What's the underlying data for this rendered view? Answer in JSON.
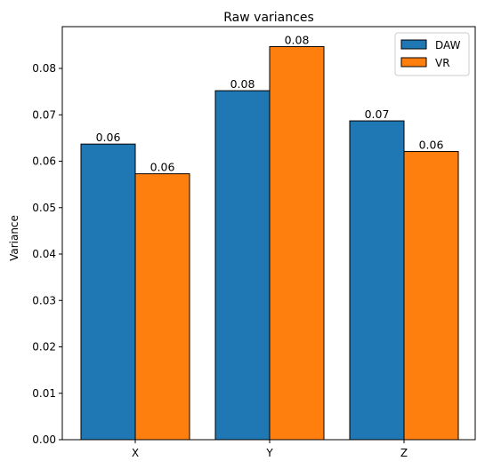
{
  "chart_data": {
    "type": "bar",
    "title": "Raw variances",
    "xlabel": "",
    "ylabel": "Variance",
    "categories": [
      "X",
      "Y",
      "Z"
    ],
    "series": [
      {
        "name": "DAW",
        "values": [
          0.0637,
          0.0752,
          0.0687
        ],
        "labels": [
          "0.06",
          "0.08",
          "0.07"
        ],
        "color": "#1f77b4"
      },
      {
        "name": "VR",
        "values": [
          0.0573,
          0.0847,
          0.0621
        ],
        "labels": [
          "0.06",
          "0.08",
          "0.06"
        ],
        "color": "#ff7f0e"
      }
    ],
    "ylim": [
      0,
      0.089
    ],
    "yticks": [
      0.0,
      0.01,
      0.02,
      0.03,
      0.04,
      0.05,
      0.06,
      0.07,
      0.08
    ],
    "ytick_labels": [
      "0.00",
      "0.01",
      "0.02",
      "0.03",
      "0.04",
      "0.05",
      "0.06",
      "0.07",
      "0.08"
    ],
    "grid": false,
    "legend": "top-right"
  }
}
